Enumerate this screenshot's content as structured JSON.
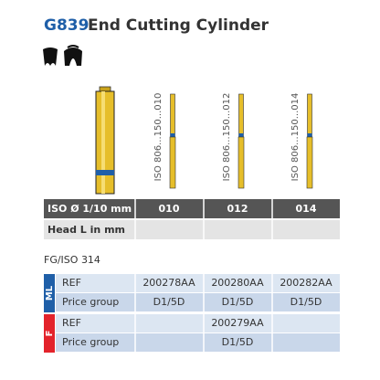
{
  "header": {
    "code": "G839",
    "title": "End Cutting Cylinder"
  },
  "burs": [
    {
      "iso_label": "ISO 806...150...010"
    },
    {
      "iso_label": "ISO 806...150...012"
    },
    {
      "iso_label": "ISO 806...150...014"
    }
  ],
  "size_table": {
    "header": [
      "ISO Ø 1/10 mm",
      "010",
      "012",
      "014"
    ],
    "row_label": "Head L in mm"
  },
  "system": "FG/ISO 314",
  "groups": [
    {
      "label": "ML",
      "color": "#1f5fa8",
      "rows": [
        {
          "label": "REF",
          "values": [
            "200278AA",
            "200280AA",
            "200282AA"
          ]
        },
        {
          "label": "Price group",
          "values": [
            "D1/5D",
            "D1/5D",
            "D1/5D"
          ]
        }
      ]
    },
    {
      "label": "F",
      "color": "#e3232b",
      "rows": [
        {
          "label": "REF",
          "values": [
            null,
            "200279AA",
            null
          ]
        },
        {
          "label": "Price group",
          "values": [
            null,
            "D1/5D",
            null
          ]
        }
      ]
    }
  ]
}
